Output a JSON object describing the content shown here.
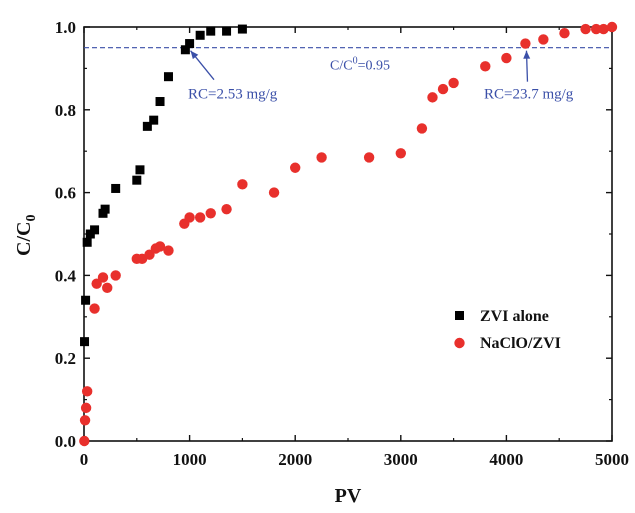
{
  "chart_data": {
    "type": "scatter",
    "xlabel": "PV",
    "ylabel_main": "C/C",
    "ylabel_sub": "0",
    "xlim": [
      0,
      5000
    ],
    "ylim": [
      0,
      1.0
    ],
    "x_ticks": [
      0,
      1000,
      2000,
      3000,
      4000,
      5000
    ],
    "y_ticks": [
      0.0,
      0.2,
      0.4,
      0.6,
      0.8,
      1.0
    ],
    "x_tick_labels": [
      "0",
      "1000",
      "2000",
      "3000",
      "4000",
      "5000"
    ],
    "y_tick_labels": [
      "0.0",
      "0.2",
      "0.4",
      "0.6",
      "0.8",
      "1.0"
    ],
    "grid": false,
    "legend_position": "center-right",
    "series": [
      {
        "name": "ZVI alone",
        "marker": "square",
        "color": "#000000",
        "points": [
          [
            5,
            0.24
          ],
          [
            15,
            0.34
          ],
          [
            30,
            0.48
          ],
          [
            60,
            0.5
          ],
          [
            100,
            0.51
          ],
          [
            180,
            0.55
          ],
          [
            200,
            0.56
          ],
          [
            300,
            0.61
          ],
          [
            500,
            0.63
          ],
          [
            530,
            0.655
          ],
          [
            600,
            0.76
          ],
          [
            660,
            0.775
          ],
          [
            720,
            0.82
          ],
          [
            800,
            0.88
          ],
          [
            960,
            0.945
          ],
          [
            1000,
            0.96
          ],
          [
            1100,
            0.98
          ],
          [
            1200,
            0.99
          ],
          [
            1350,
            0.99
          ],
          [
            1500,
            0.995
          ]
        ]
      },
      {
        "name": "NaClO/ZVI",
        "marker": "circle",
        "color": "#e8302c",
        "points": [
          [
            3,
            0.0
          ],
          [
            10,
            0.05
          ],
          [
            20,
            0.08
          ],
          [
            30,
            0.12
          ],
          [
            100,
            0.32
          ],
          [
            120,
            0.38
          ],
          [
            180,
            0.395
          ],
          [
            220,
            0.37
          ],
          [
            300,
            0.4
          ],
          [
            500,
            0.44
          ],
          [
            550,
            0.44
          ],
          [
            620,
            0.45
          ],
          [
            680,
            0.465
          ],
          [
            720,
            0.47
          ],
          [
            800,
            0.46
          ],
          [
            950,
            0.525
          ],
          [
            1000,
            0.54
          ],
          [
            1100,
            0.54
          ],
          [
            1200,
            0.55
          ],
          [
            1350,
            0.56
          ],
          [
            1500,
            0.62
          ],
          [
            1800,
            0.6
          ],
          [
            2000,
            0.66
          ],
          [
            2250,
            0.685
          ],
          [
            2700,
            0.685
          ],
          [
            3000,
            0.695
          ],
          [
            3200,
            0.755
          ],
          [
            3300,
            0.83
          ],
          [
            3400,
            0.85
          ],
          [
            3500,
            0.865
          ],
          [
            3800,
            0.905
          ],
          [
            4000,
            0.925
          ],
          [
            4180,
            0.96
          ],
          [
            4350,
            0.97
          ],
          [
            4550,
            0.985
          ],
          [
            4750,
            0.995
          ],
          [
            4850,
            0.995
          ],
          [
            4920,
            0.995
          ],
          [
            5000,
            1.0
          ]
        ]
      }
    ],
    "reference_line": {
      "y": 0.95,
      "color": "#3a4fa8",
      "style": "dashed"
    },
    "annotations": {
      "ref_label_main": "C/C",
      "ref_label_sup": "0",
      "ref_label_tail": "=0.95",
      "rc1_text": "RC=2.53 mg/g",
      "rc1_target": [
        990,
        0.95
      ],
      "rc2_text": "RC=23.7 mg/g",
      "rc2_target": [
        4190,
        0.95
      ]
    }
  }
}
